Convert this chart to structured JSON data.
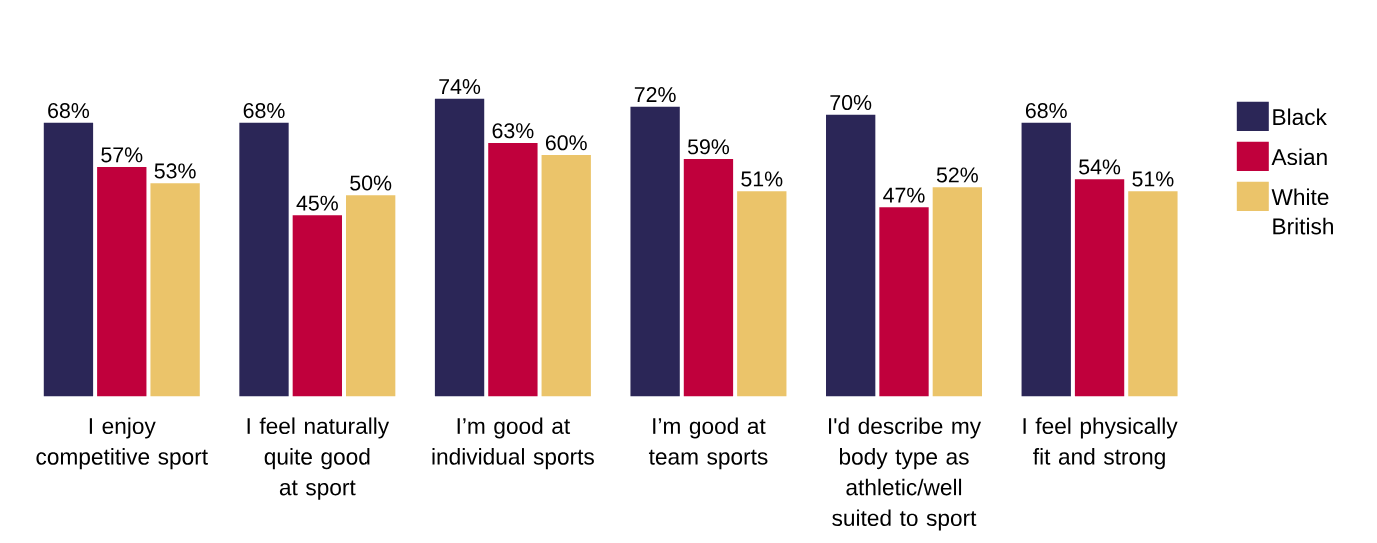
{
  "chart_data": {
    "type": "bar",
    "categories": [
      "I enjoy competitive sport",
      "I feel naturally quite good at sport",
      "I’m good at individual sports",
      "I’m good at team sports",
      "I'd describe my body type as athletic/well suited to sport",
      "I feel physically fit and strong"
    ],
    "series": [
      {
        "name": "Black",
        "color": "#2b2657",
        "values": [
          68,
          68,
          74,
          72,
          70,
          68
        ],
        "value_labels": [
          "68%",
          "68%",
          "74%",
          "72%",
          "70%",
          "68%"
        ]
      },
      {
        "name": "Asian",
        "color": "#c0003c",
        "values": [
          57,
          45,
          63,
          59,
          47,
          54
        ],
        "value_labels": [
          "57%",
          "45%",
          "63%",
          "59%",
          "47%",
          "54%"
        ]
      },
      {
        "name": "White British",
        "color": "#ebc46a",
        "values": [
          53,
          50,
          60,
          51,
          52,
          51
        ],
        "value_labels": [
          "53%",
          "50%",
          "60%",
          "51%",
          "52%",
          "51%"
        ]
      }
    ],
    "legend": "right"
  }
}
